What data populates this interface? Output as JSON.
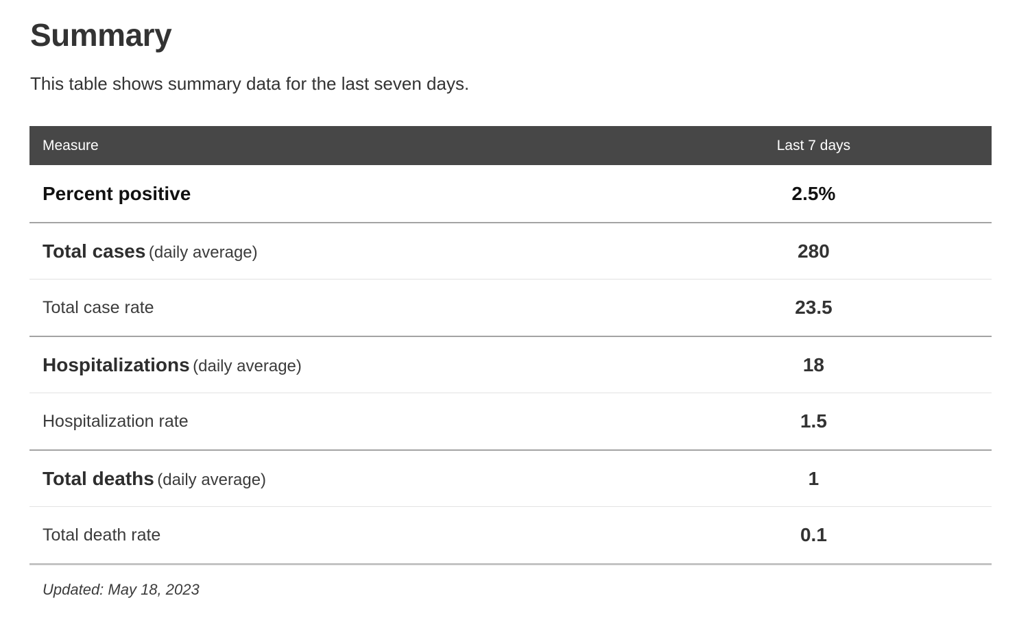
{
  "page": {
    "title": "Summary",
    "subtitle": "This table shows summary data for the last seven days.",
    "updated": "Updated: May 18, 2023"
  },
  "table": {
    "columns": {
      "measure": "Measure",
      "period": "Last 7 days"
    },
    "rows": [
      {
        "label": "Percent positive",
        "suffix": "",
        "value": "2.5%"
      },
      {
        "label": "Total cases",
        "suffix": "(daily average)",
        "value": "280"
      },
      {
        "label": "Total case rate",
        "suffix": "",
        "value": "23.5"
      },
      {
        "label": "Hospitalizations",
        "suffix": "(daily average)",
        "value": "18"
      },
      {
        "label": "Hospitalization rate",
        "suffix": "",
        "value": "1.5"
      },
      {
        "label": "Total deaths",
        "suffix": "(daily average)",
        "value": "1"
      },
      {
        "label": "Total death rate",
        "suffix": "",
        "value": "0.1"
      }
    ]
  },
  "colors": {
    "header_bg": "#474747",
    "header_text": "#ffffff",
    "separator_strong": "#a3a3a3",
    "separator_light": "#e2e2e2",
    "table_bottom_border": "#c3c3c3",
    "text_primary": "#111111",
    "text_default": "#333333"
  },
  "chart_data": {
    "type": "table",
    "title": "Summary",
    "columns": [
      "Measure",
      "Last 7 days"
    ],
    "rows": [
      [
        "Percent positive",
        "2.5%"
      ],
      [
        "Total cases (daily average)",
        "280"
      ],
      [
        "Total case rate",
        "23.5"
      ],
      [
        "Hospitalizations (daily average)",
        "18"
      ],
      [
        "Hospitalization rate",
        "1.5"
      ],
      [
        "Total deaths (daily average)",
        "1"
      ],
      [
        "Total death rate",
        "0.1"
      ]
    ]
  }
}
